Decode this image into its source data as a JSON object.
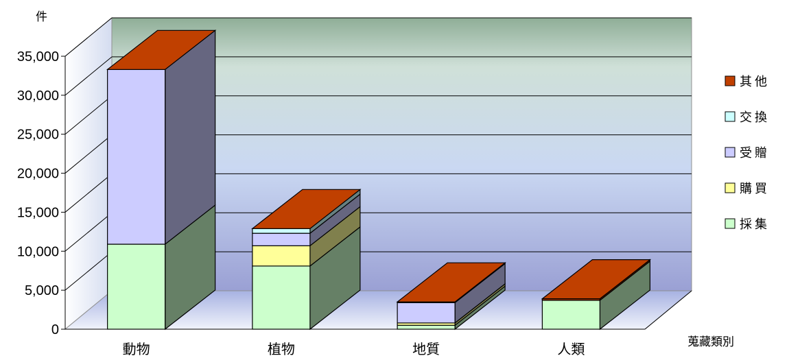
{
  "chart_data": {
    "type": "bar",
    "stacked": true,
    "three_d": true,
    "ylabel": "件",
    "xlabel": "蒐藏類別",
    "ylim": [
      0,
      35000
    ],
    "yticks": [
      "0",
      "5,000",
      "10,000",
      "15,000",
      "20,000",
      "25,000",
      "30,000",
      "35,000"
    ],
    "grid": true,
    "legend_position": "right",
    "categories": [
      "動物",
      "植物",
      "地質",
      "人類"
    ],
    "series": [
      {
        "name": "採集",
        "color": "#ccffcc",
        "values": [
          10900,
          8100,
          500,
          3700
        ]
      },
      {
        "name": "購買",
        "color": "#ffff99",
        "values": [
          0,
          2600,
          300,
          0
        ]
      },
      {
        "name": "受贈",
        "color": "#ccccff",
        "values": [
          22400,
          1600,
          2600,
          0
        ]
      },
      {
        "name": "交換",
        "color": "#ccffff",
        "values": [
          0,
          600,
          100,
          0
        ]
      },
      {
        "name": "其他",
        "color": "#c04000",
        "values": [
          0,
          0,
          0,
          200
        ]
      }
    ],
    "legend_order": [
      "其他",
      "交換",
      "受贈",
      "購買",
      "採集"
    ]
  }
}
